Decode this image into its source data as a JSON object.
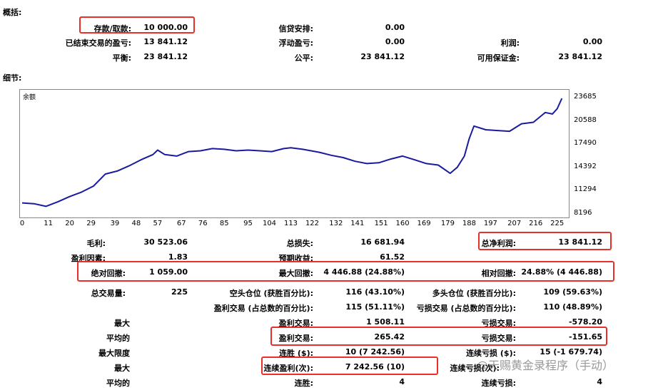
{
  "summary": {
    "heading": "概括:",
    "deposit_label": "存款/取款:",
    "deposit_value": "10 000.00",
    "credit_label": "信贷安排:",
    "credit_value": "0.00",
    "closed_pl_label": "已结束交易的盈亏:",
    "closed_pl_value": "13 841.12",
    "floating_pl_label": "浮动盈亏:",
    "floating_pl_value": "0.00",
    "margin_label": "利润:",
    "margin_value": "0.00",
    "balance_label": "平衡:",
    "balance_value": "23 841.12",
    "equity_label": "公平:",
    "equity_value": "23 841.12",
    "free_margin_label": "可用保证金:",
    "free_margin_value": "23 841.12"
  },
  "details": {
    "heading": "细节:",
    "chart_legend": "余额"
  },
  "chart_data": {
    "type": "line",
    "series": [
      {
        "name": "余额",
        "color": "#1a1aa0"
      }
    ],
    "x": [
      0,
      5,
      10,
      15,
      20,
      25,
      30,
      35,
      40,
      45,
      50,
      55,
      57,
      60,
      65,
      70,
      75,
      80,
      85,
      90,
      95,
      100,
      105,
      110,
      113,
      118,
      125,
      130,
      135,
      140,
      145,
      150,
      155,
      160,
      165,
      170,
      175,
      180,
      183,
      186,
      188,
      190,
      195,
      200,
      205,
      210,
      215,
      220,
      223,
      225,
      227
    ],
    "y": [
      9750,
      9650,
      9300,
      9900,
      10600,
      11200,
      12000,
      13600,
      14000,
      14700,
      15500,
      16200,
      16800,
      16200,
      16000,
      16600,
      16700,
      17000,
      16900,
      16700,
      16800,
      16700,
      16600,
      17000,
      17100,
      16900,
      16500,
      16100,
      15800,
      15300,
      15000,
      15100,
      15600,
      16000,
      15500,
      15000,
      14800,
      13700,
      14500,
      16000,
      18300,
      20000,
      19500,
      19400,
      19300,
      20300,
      20500,
      21800,
      21600,
      22300,
      23685
    ],
    "xtick_labels": [
      "0",
      "11",
      "20",
      "29",
      "39",
      "48",
      "57",
      "67",
      "76",
      "85",
      "95",
      "104",
      "113",
      "122",
      "132",
      "141",
      "151",
      "160",
      "169",
      "179",
      "188",
      "197",
      "207",
      "216",
      "225"
    ],
    "ytick_labels": [
      "23685",
      "20588",
      "17490",
      "14392",
      "11294",
      "8196"
    ],
    "xlim": [
      0,
      229
    ],
    "ylim": [
      8196,
      23685
    ]
  },
  "stats": {
    "gross_profit_label": "毛利:",
    "gross_profit_value": "30 523.06",
    "gross_loss_label": "总损失:",
    "gross_loss_value": "16 681.94",
    "net_profit_label": "总净利润:",
    "net_profit_value": "13 841.12",
    "profit_factor_label": "盈利因素:",
    "profit_factor_value": "1.83",
    "expected_payoff_label": "预期收益:",
    "expected_payoff_value": "61.52",
    "abs_dd_label": "绝对回撤:",
    "abs_dd_value": "1 059.00",
    "max_dd_label": "最大回撤:",
    "max_dd_value": "4 446.88 (24.88%)",
    "rel_dd_label": "相对回撤:",
    "rel_dd_value": "24.88% (4 446.88)",
    "total_trades_label": "总交易量:",
    "total_trades_value": "225",
    "short_label": "空头仓位 (获胜百分比):",
    "short_value": "116 (43.10%)",
    "long_label": "多头仓位 (获胜百分比):",
    "long_value": "109 (59.63%)",
    "profit_trades_label": "盈利交易 (占总数的百分比):",
    "profit_trades_value": "115 (51.11%)",
    "loss_trades_label": "亏损交易 (占总数的百分比):",
    "loss_trades_value": "110 (48.89%)",
    "largest_label": "最大",
    "largest_profit_label": "盈利交易:",
    "largest_profit_value": "1 508.11",
    "largest_loss_label": "亏损交易:",
    "largest_loss_value": "-578.20",
    "average_label": "平均的",
    "avg_profit_label": "盈利交易:",
    "avg_profit_value": "265.42",
    "avg_loss_label": "亏损交易:",
    "avg_loss_value": "-151.65",
    "max_limit_label": "最大限度",
    "consec_wins_label": "连胜 ($):",
    "consec_wins_value": "10 (7 242.56)",
    "consec_losses_label": "连续亏损 ($):",
    "consec_losses_value": "15 (-1 679.74)",
    "maximal_label": "最大",
    "consec_profit_label": "连续盈利(次):",
    "consec_profit_value": "7 242.56 (10)",
    "consec_loss_label": "连续亏损(次):",
    "consec_loss_value": "",
    "avg2_label": "平均的",
    "avg_wins_label": "连胜:",
    "avg_wins_value": "4",
    "avg_losses_label": "连续亏损:",
    "avg_losses_value": "4"
  },
  "watermark": "@天赐黄金录程序（手动）"
}
